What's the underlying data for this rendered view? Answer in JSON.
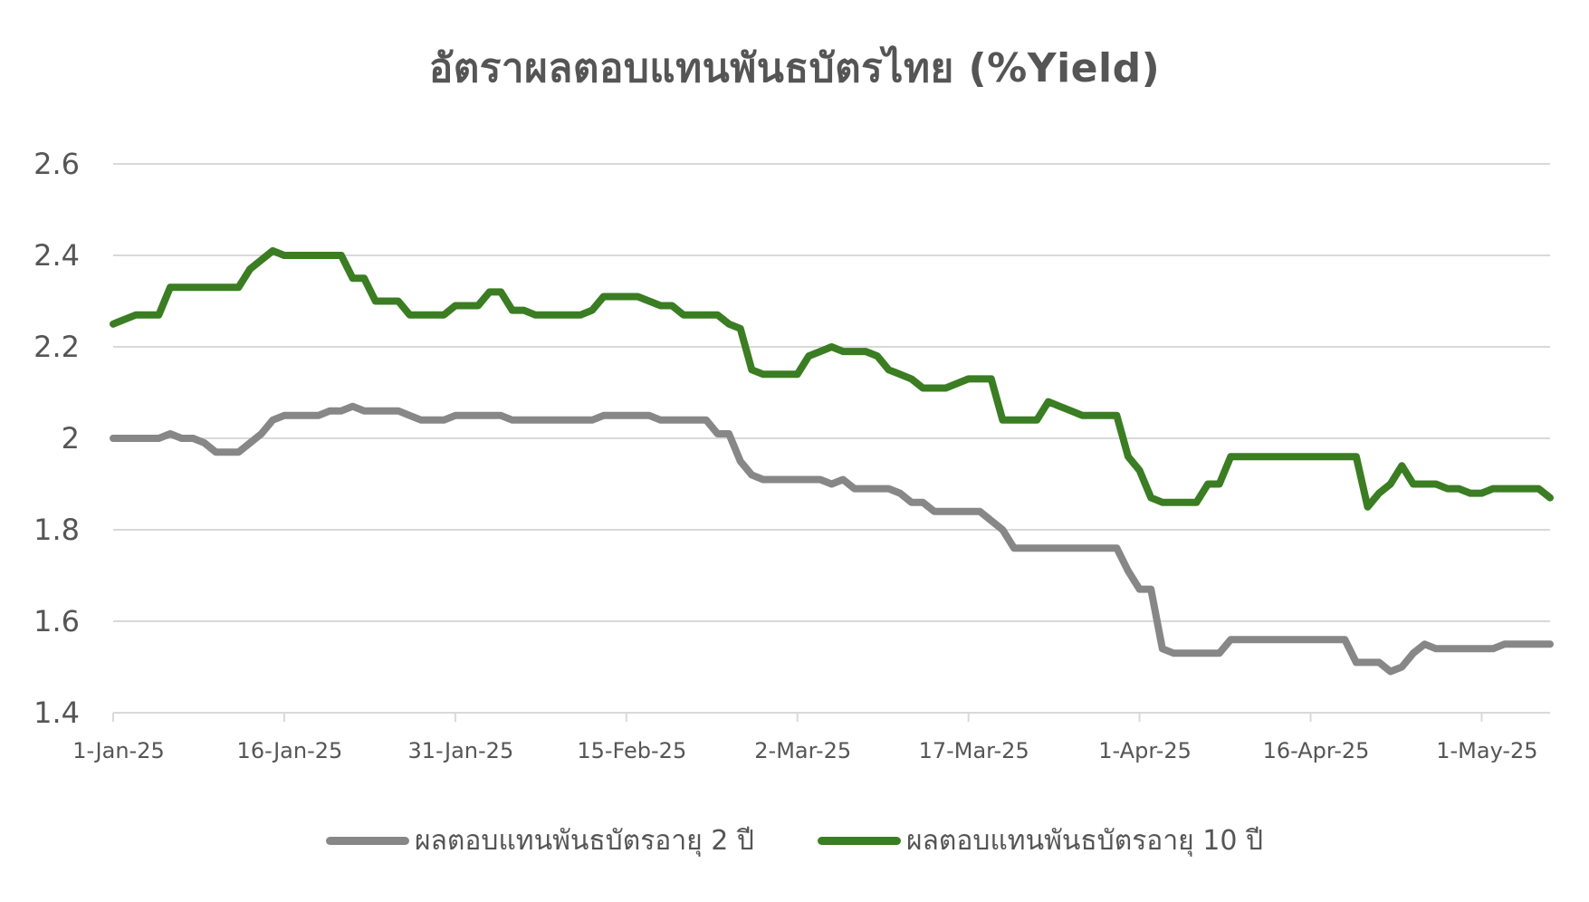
{
  "chart_data": {
    "type": "line",
    "title": "อัตราผลตอบแทนพันธบัตรไทย (%Yield)",
    "xlabel": "",
    "ylabel": "",
    "ylim": [
      1.4,
      2.6
    ],
    "yticks": [
      "1.4",
      "1.6",
      "1.8",
      "2",
      "2.2",
      "2.4",
      "2.6"
    ],
    "xticks": [
      {
        "label": "1-Jan-25",
        "day": 0
      },
      {
        "label": "16-Jan-25",
        "day": 15
      },
      {
        "label": "31-Jan-25",
        "day": 30
      },
      {
        "label": "15-Feb-25",
        "day": 45
      },
      {
        "label": "2-Mar-25",
        "day": 60
      },
      {
        "label": "17-Mar-25",
        "day": 75
      },
      {
        "label": "1-Apr-25",
        "day": 90
      },
      {
        "label": "16-Apr-25",
        "day": 105
      },
      {
        "label": "1-May-25",
        "day": 120
      }
    ],
    "grid": true,
    "legend_position": "bottom",
    "series": [
      {
        "name": "ผลตอบแทนพันธบัตรอายุ 2 ปี",
        "color": "#878787",
        "points": [
          [
            0,
            2.0
          ],
          [
            1,
            2.0
          ],
          [
            2,
            2.0
          ],
          [
            3,
            2.0
          ],
          [
            4,
            2.0
          ],
          [
            5,
            2.01
          ],
          [
            6,
            2.0
          ],
          [
            7,
            2.0
          ],
          [
            8,
            1.99
          ],
          [
            9,
            1.97
          ],
          [
            10,
            1.97
          ],
          [
            11,
            1.97
          ],
          [
            12,
            1.99
          ],
          [
            13,
            2.01
          ],
          [
            14,
            2.04
          ],
          [
            15,
            2.05
          ],
          [
            16,
            2.05
          ],
          [
            17,
            2.05
          ],
          [
            18,
            2.05
          ],
          [
            19,
            2.06
          ],
          [
            20,
            2.06
          ],
          [
            21,
            2.07
          ],
          [
            22,
            2.06
          ],
          [
            23,
            2.06
          ],
          [
            24,
            2.06
          ],
          [
            25,
            2.06
          ],
          [
            26,
            2.05
          ],
          [
            27,
            2.04
          ],
          [
            28,
            2.04
          ],
          [
            29,
            2.04
          ],
          [
            30,
            2.05
          ],
          [
            31,
            2.05
          ],
          [
            32,
            2.05
          ],
          [
            33,
            2.05
          ],
          [
            34,
            2.05
          ],
          [
            35,
            2.04
          ],
          [
            36,
            2.04
          ],
          [
            37,
            2.04
          ],
          [
            38,
            2.04
          ],
          [
            39,
            2.04
          ],
          [
            40,
            2.04
          ],
          [
            41,
            2.04
          ],
          [
            42,
            2.04
          ],
          [
            43,
            2.05
          ],
          [
            44,
            2.05
          ],
          [
            45,
            2.05
          ],
          [
            46,
            2.05
          ],
          [
            47,
            2.05
          ],
          [
            48,
            2.04
          ],
          [
            49,
            2.04
          ],
          [
            50,
            2.04
          ],
          [
            51,
            2.04
          ],
          [
            52,
            2.04
          ],
          [
            53,
            2.01
          ],
          [
            54,
            2.01
          ],
          [
            55,
            1.95
          ],
          [
            56,
            1.92
          ],
          [
            57,
            1.91
          ],
          [
            58,
            1.91
          ],
          [
            59,
            1.91
          ],
          [
            60,
            1.91
          ],
          [
            61,
            1.91
          ],
          [
            62,
            1.91
          ],
          [
            63,
            1.9
          ],
          [
            64,
            1.91
          ],
          [
            65,
            1.89
          ],
          [
            66,
            1.89
          ],
          [
            67,
            1.89
          ],
          [
            68,
            1.89
          ],
          [
            69,
            1.88
          ],
          [
            70,
            1.86
          ],
          [
            71,
            1.86
          ],
          [
            72,
            1.84
          ],
          [
            73,
            1.84
          ],
          [
            74,
            1.84
          ],
          [
            75,
            1.84
          ],
          [
            76,
            1.84
          ],
          [
            77,
            1.82
          ],
          [
            78,
            1.8
          ],
          [
            79,
            1.76
          ],
          [
            80,
            1.76
          ],
          [
            81,
            1.76
          ],
          [
            82,
            1.76
          ],
          [
            83,
            1.76
          ],
          [
            84,
            1.76
          ],
          [
            85,
            1.76
          ],
          [
            86,
            1.76
          ],
          [
            87,
            1.76
          ],
          [
            88,
            1.76
          ],
          [
            89,
            1.71
          ],
          [
            90,
            1.67
          ],
          [
            91,
            1.67
          ],
          [
            92,
            1.54
          ],
          [
            93,
            1.53
          ],
          [
            94,
            1.53
          ],
          [
            95,
            1.53
          ],
          [
            96,
            1.53
          ],
          [
            97,
            1.53
          ],
          [
            98,
            1.56
          ],
          [
            99,
            1.56
          ],
          [
            100,
            1.56
          ],
          [
            101,
            1.56
          ],
          [
            102,
            1.56
          ],
          [
            103,
            1.56
          ],
          [
            104,
            1.56
          ],
          [
            105,
            1.56
          ],
          [
            106,
            1.56
          ],
          [
            107,
            1.56
          ],
          [
            108,
            1.56
          ],
          [
            109,
            1.51
          ],
          [
            110,
            1.51
          ],
          [
            111,
            1.51
          ],
          [
            112,
            1.49
          ],
          [
            113,
            1.5
          ],
          [
            114,
            1.53
          ],
          [
            115,
            1.55
          ],
          [
            116,
            1.54
          ],
          [
            117,
            1.54
          ],
          [
            118,
            1.54
          ],
          [
            119,
            1.54
          ],
          [
            120,
            1.54
          ],
          [
            121,
            1.54
          ],
          [
            122,
            1.55
          ],
          [
            123,
            1.55
          ],
          [
            124,
            1.55
          ],
          [
            125,
            1.55
          ],
          [
            126,
            1.55
          ]
        ]
      },
      {
        "name": "ผลตอบแทนพันธบัตรอายุ 10 ปี",
        "color": "#3a7d22",
        "points": [
          [
            0,
            2.25
          ],
          [
            1,
            2.26
          ],
          [
            2,
            2.27
          ],
          [
            3,
            2.27
          ],
          [
            4,
            2.27
          ],
          [
            5,
            2.33
          ],
          [
            6,
            2.33
          ],
          [
            7,
            2.33
          ],
          [
            8,
            2.33
          ],
          [
            9,
            2.33
          ],
          [
            10,
            2.33
          ],
          [
            11,
            2.33
          ],
          [
            12,
            2.37
          ],
          [
            13,
            2.39
          ],
          [
            14,
            2.41
          ],
          [
            15,
            2.4
          ],
          [
            16,
            2.4
          ],
          [
            17,
            2.4
          ],
          [
            18,
            2.4
          ],
          [
            19,
            2.4
          ],
          [
            20,
            2.4
          ],
          [
            21,
            2.35
          ],
          [
            22,
            2.35
          ],
          [
            23,
            2.3
          ],
          [
            24,
            2.3
          ],
          [
            25,
            2.3
          ],
          [
            26,
            2.27
          ],
          [
            27,
            2.27
          ],
          [
            28,
            2.27
          ],
          [
            29,
            2.27
          ],
          [
            30,
            2.29
          ],
          [
            31,
            2.29
          ],
          [
            32,
            2.29
          ],
          [
            33,
            2.32
          ],
          [
            34,
            2.32
          ],
          [
            35,
            2.28
          ],
          [
            36,
            2.28
          ],
          [
            37,
            2.27
          ],
          [
            38,
            2.27
          ],
          [
            39,
            2.27
          ],
          [
            40,
            2.27
          ],
          [
            41,
            2.27
          ],
          [
            42,
            2.28
          ],
          [
            43,
            2.31
          ],
          [
            44,
            2.31
          ],
          [
            45,
            2.31
          ],
          [
            46,
            2.31
          ],
          [
            47,
            2.3
          ],
          [
            48,
            2.29
          ],
          [
            49,
            2.29
          ],
          [
            50,
            2.27
          ],
          [
            51,
            2.27
          ],
          [
            52,
            2.27
          ],
          [
            53,
            2.27
          ],
          [
            54,
            2.25
          ],
          [
            55,
            2.24
          ],
          [
            56,
            2.15
          ],
          [
            57,
            2.14
          ],
          [
            58,
            2.14
          ],
          [
            59,
            2.14
          ],
          [
            60,
            2.14
          ],
          [
            61,
            2.18
          ],
          [
            62,
            2.19
          ],
          [
            63,
            2.2
          ],
          [
            64,
            2.19
          ],
          [
            65,
            2.19
          ],
          [
            66,
            2.19
          ],
          [
            67,
            2.18
          ],
          [
            68,
            2.15
          ],
          [
            69,
            2.14
          ],
          [
            70,
            2.13
          ],
          [
            71,
            2.11
          ],
          [
            72,
            2.11
          ],
          [
            73,
            2.11
          ],
          [
            74,
            2.12
          ],
          [
            75,
            2.13
          ],
          [
            76,
            2.13
          ],
          [
            77,
            2.13
          ],
          [
            78,
            2.04
          ],
          [
            79,
            2.04
          ],
          [
            80,
            2.04
          ],
          [
            81,
            2.04
          ],
          [
            82,
            2.08
          ],
          [
            83,
            2.07
          ],
          [
            84,
            2.06
          ],
          [
            85,
            2.05
          ],
          [
            86,
            2.05
          ],
          [
            87,
            2.05
          ],
          [
            88,
            2.05
          ],
          [
            89,
            1.96
          ],
          [
            90,
            1.93
          ],
          [
            91,
            1.87
          ],
          [
            92,
            1.86
          ],
          [
            93,
            1.86
          ],
          [
            94,
            1.86
          ],
          [
            95,
            1.86
          ],
          [
            96,
            1.9
          ],
          [
            97,
            1.9
          ],
          [
            98,
            1.96
          ],
          [
            99,
            1.96
          ],
          [
            100,
            1.96
          ],
          [
            101,
            1.96
          ],
          [
            102,
            1.96
          ],
          [
            103,
            1.96
          ],
          [
            104,
            1.96
          ],
          [
            105,
            1.96
          ],
          [
            106,
            1.96
          ],
          [
            107,
            1.96
          ],
          [
            108,
            1.96
          ],
          [
            109,
            1.96
          ],
          [
            110,
            1.85
          ],
          [
            111,
            1.88
          ],
          [
            112,
            1.9
          ],
          [
            113,
            1.94
          ],
          [
            114,
            1.9
          ],
          [
            115,
            1.9
          ],
          [
            116,
            1.9
          ],
          [
            117,
            1.89
          ],
          [
            118,
            1.89
          ],
          [
            119,
            1.88
          ],
          [
            120,
            1.88
          ],
          [
            121,
            1.89
          ],
          [
            122,
            1.89
          ],
          [
            123,
            1.89
          ],
          [
            124,
            1.89
          ],
          [
            125,
            1.89
          ],
          [
            126,
            1.87
          ]
        ]
      }
    ]
  }
}
